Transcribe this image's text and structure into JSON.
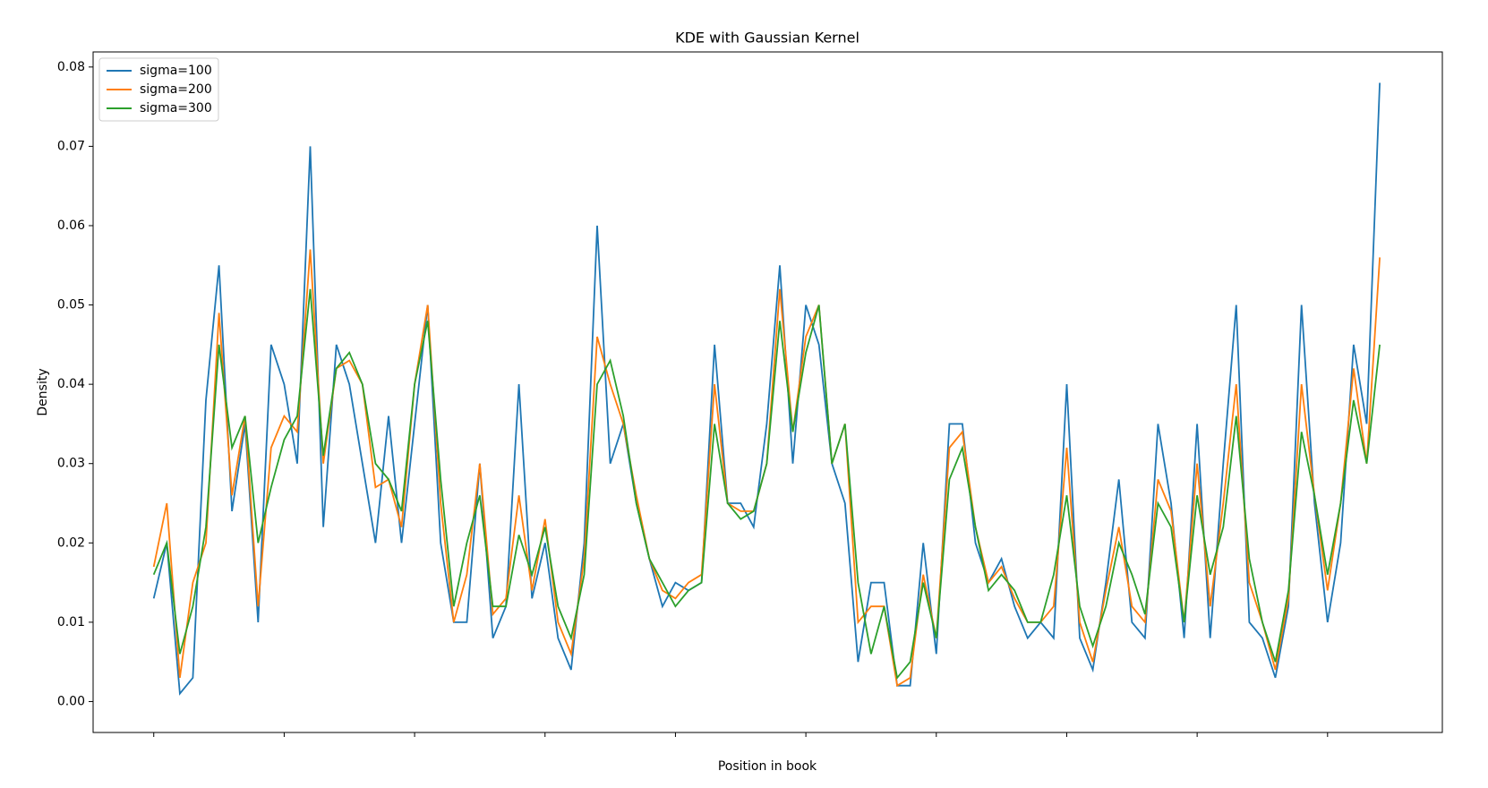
{
  "chart_data": {
    "type": "line",
    "title": "KDE with Gaussian Kernel",
    "x_label": "Position in book",
    "y_label": "Density",
    "x": [
      0,
      100,
      200,
      300,
      400,
      500,
      600,
      700,
      800,
      900,
      1000,
      1100,
      1200,
      1300,
      1400,
      1500,
      1600,
      1700,
      1800,
      1900,
      2000,
      2100,
      2200,
      2300,
      2400,
      2500,
      2600,
      2700,
      2800,
      2900,
      3000,
      3100,
      3200,
      3300,
      3400,
      3500,
      3600,
      3700,
      3800,
      3900,
      4000,
      4100,
      4200,
      4300,
      4400,
      4500,
      4600,
      4700,
      4800,
      4900,
      5000,
      5100,
      5200,
      5300,
      5400,
      5500,
      5600,
      5700,
      5800,
      5900,
      6000,
      6100,
      6200,
      6300,
      6400,
      6500,
      6600,
      6700,
      6800,
      6900,
      7000,
      7100,
      7200,
      7300,
      7400,
      7500,
      7600,
      7700,
      7800,
      7900,
      8000,
      8100,
      8200,
      8300,
      8400,
      8500,
      8600,
      8700,
      8800,
      8900,
      9000,
      9100,
      9200,
      9300,
      9400
    ],
    "series": [
      {
        "name": "sigma=100",
        "color": "#1f77b4",
        "values": [
          0.013,
          0.02,
          0.001,
          0.003,
          0.038,
          0.055,
          0.024,
          0.035,
          0.01,
          0.045,
          0.04,
          0.03,
          0.07,
          0.022,
          0.045,
          0.04,
          0.03,
          0.02,
          0.036,
          0.02,
          0.035,
          0.05,
          0.02,
          0.01,
          0.01,
          0.03,
          0.008,
          0.012,
          0.04,
          0.013,
          0.02,
          0.008,
          0.004,
          0.02,
          0.06,
          0.03,
          0.035,
          0.025,
          0.018,
          0.012,
          0.015,
          0.014,
          0.015,
          0.045,
          0.025,
          0.025,
          0.022,
          0.035,
          0.055,
          0.03,
          0.05,
          0.045,
          0.03,
          0.025,
          0.005,
          0.015,
          0.015,
          0.002,
          0.002,
          0.02,
          0.006,
          0.035,
          0.035,
          0.02,
          0.015,
          0.018,
          0.012,
          0.008,
          0.01,
          0.008,
          0.04,
          0.008,
          0.004,
          0.015,
          0.028,
          0.01,
          0.008,
          0.035,
          0.025,
          0.008,
          0.035,
          0.008,
          0.03,
          0.05,
          0.01,
          0.008,
          0.003,
          0.012,
          0.05,
          0.025,
          0.01,
          0.02,
          0.045,
          0.035,
          0.078
        ]
      },
      {
        "name": "sigma=200",
        "color": "#ff7f0e",
        "values": [
          0.017,
          0.025,
          0.003,
          0.015,
          0.02,
          0.049,
          0.026,
          0.036,
          0.012,
          0.032,
          0.036,
          0.034,
          0.057,
          0.03,
          0.042,
          0.043,
          0.04,
          0.027,
          0.028,
          0.022,
          0.04,
          0.05,
          0.025,
          0.01,
          0.016,
          0.03,
          0.011,
          0.013,
          0.026,
          0.014,
          0.023,
          0.01,
          0.006,
          0.018,
          0.046,
          0.04,
          0.035,
          0.026,
          0.018,
          0.014,
          0.013,
          0.015,
          0.016,
          0.04,
          0.025,
          0.024,
          0.024,
          0.03,
          0.052,
          0.034,
          0.046,
          0.05,
          0.03,
          0.035,
          0.01,
          0.012,
          0.012,
          0.002,
          0.003,
          0.016,
          0.008,
          0.032,
          0.034,
          0.022,
          0.015,
          0.017,
          0.013,
          0.01,
          0.01,
          0.012,
          0.032,
          0.01,
          0.005,
          0.014,
          0.022,
          0.012,
          0.01,
          0.028,
          0.024,
          0.01,
          0.03,
          0.012,
          0.025,
          0.04,
          0.015,
          0.01,
          0.004,
          0.013,
          0.04,
          0.026,
          0.014,
          0.025,
          0.042,
          0.03,
          0.056
        ]
      },
      {
        "name": "sigma=300",
        "color": "#2ca02c",
        "values": [
          0.016,
          0.02,
          0.006,
          0.012,
          0.022,
          0.045,
          0.032,
          0.036,
          0.02,
          0.027,
          0.033,
          0.036,
          0.052,
          0.031,
          0.042,
          0.044,
          0.04,
          0.03,
          0.028,
          0.024,
          0.04,
          0.048,
          0.028,
          0.012,
          0.02,
          0.026,
          0.012,
          0.012,
          0.021,
          0.016,
          0.022,
          0.012,
          0.008,
          0.016,
          0.04,
          0.043,
          0.036,
          0.025,
          0.018,
          0.015,
          0.012,
          0.014,
          0.015,
          0.035,
          0.025,
          0.023,
          0.024,
          0.03,
          0.048,
          0.034,
          0.044,
          0.05,
          0.03,
          0.035,
          0.015,
          0.006,
          0.012,
          0.003,
          0.005,
          0.015,
          0.008,
          0.028,
          0.032,
          0.022,
          0.014,
          0.016,
          0.014,
          0.01,
          0.01,
          0.016,
          0.026,
          0.012,
          0.007,
          0.012,
          0.02,
          0.016,
          0.011,
          0.025,
          0.022,
          0.01,
          0.026,
          0.016,
          0.022,
          0.036,
          0.018,
          0.01,
          0.005,
          0.014,
          0.034,
          0.026,
          0.016,
          0.025,
          0.038,
          0.03,
          0.045
        ]
      }
    ],
    "xlim": [
      -465,
      9880
    ],
    "xticks": [
      0,
      1000,
      2000,
      3000,
      4000,
      5000,
      6000,
      7000,
      8000,
      9000
    ],
    "ylim": [
      -0.0039,
      0.0819
    ],
    "yticks": [
      0,
      0.01,
      0.02,
      0.03,
      0.04,
      0.05,
      0.06,
      0.07,
      0.08
    ],
    "ytick_labels": [
      "0.00",
      "0.01",
      "0.02",
      "0.03",
      "0.04",
      "0.05",
      "0.06",
      "0.07",
      "0.08"
    ],
    "legend": "upper left"
  }
}
